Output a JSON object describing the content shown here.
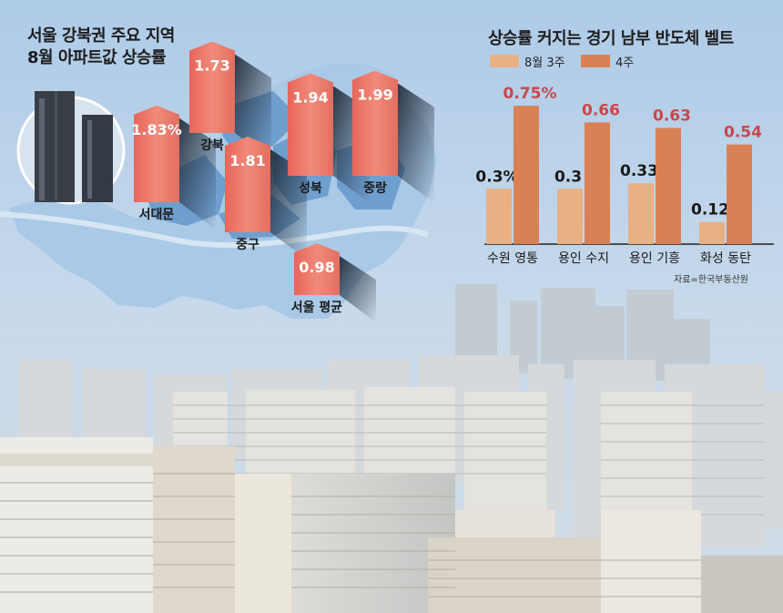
{
  "left_panel": {
    "title_line1": "서울 강북권 주요 지역",
    "title_line2": "8월 아파트값 상승률"
  },
  "right_panel": {
    "title": "상승률 커지는 경기 남부 반도체 벨트",
    "legend": [
      "8월 3주",
      "4주"
    ],
    "source": "자료=한국부동산원"
  },
  "colors": {
    "light_bar": "#e8b083",
    "dark_bar": "#d98155",
    "red_value": "#c9474a",
    "salmon_column": "#ea7868"
  },
  "chart_data": [
    {
      "type": "bar",
      "title": "서울 강북권 주요 지역 8월 아파트값 상승률",
      "categories": [
        "서대문",
        "강북",
        "중구",
        "성북",
        "중랑",
        "서울 평균"
      ],
      "values": [
        1.83,
        1.73,
        1.81,
        1.94,
        1.99,
        0.98
      ],
      "value_labels": [
        "1.83%",
        "1.73",
        "1.81",
        "1.94",
        "1.99",
        "0.98"
      ]
    },
    {
      "type": "bar",
      "title": "상승률 커지는 경기 남부 반도체 벨트",
      "categories": [
        "수원 영통",
        "용인 수지",
        "용인 기흥",
        "화성 동탄"
      ],
      "series": [
        {
          "name": "8월 3주",
          "values": [
            0.3,
            0.3,
            0.33,
            0.12
          ],
          "labels": [
            "0.3%",
            "0.3",
            "0.33",
            "0.12"
          ]
        },
        {
          "name": "4주",
          "values": [
            0.75,
            0.66,
            0.63,
            0.54
          ],
          "labels": [
            "0.75%",
            "0.66",
            "0.63",
            "0.54"
          ]
        }
      ],
      "ylim": [
        0,
        0.8
      ]
    }
  ]
}
